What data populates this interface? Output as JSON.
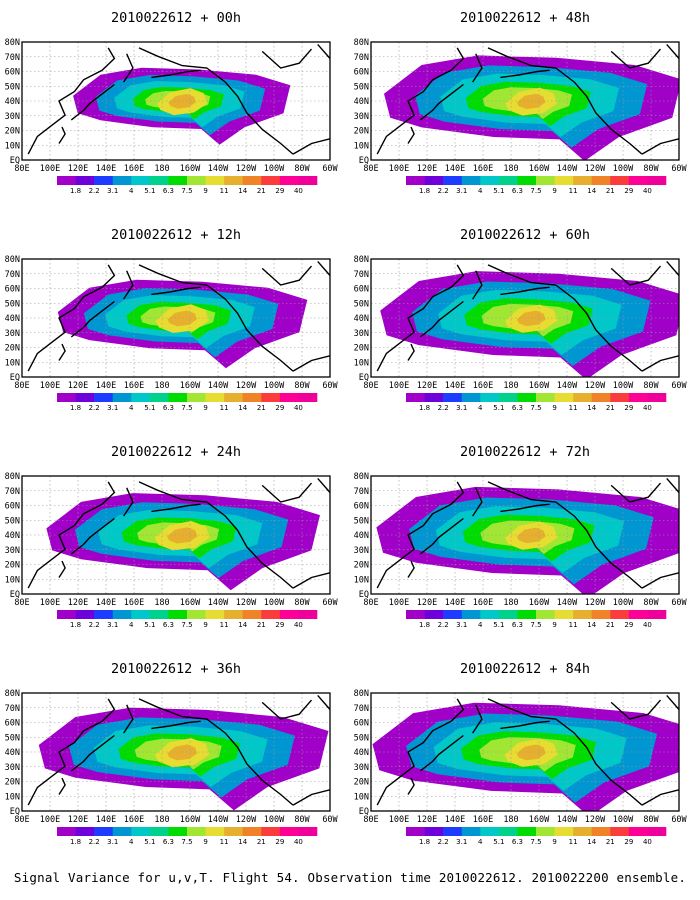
{
  "panels": [
    {
      "title": "2010022612 + 00h",
      "intensity": 0.55,
      "spread": 0.35
    },
    {
      "title": "2010022612 + 48h",
      "intensity": 0.6,
      "spread": 0.85
    },
    {
      "title": "2010022612 + 12h",
      "intensity": 0.65,
      "spread": 0.55
    },
    {
      "title": "2010022612 + 60h",
      "intensity": 0.62,
      "spread": 0.9
    },
    {
      "title": "2010022612 + 24h",
      "intensity": 0.7,
      "spread": 0.7
    },
    {
      "title": "2010022612 + 72h",
      "intensity": 0.62,
      "spread": 0.95
    },
    {
      "title": "2010022612 + 36h",
      "intensity": 0.68,
      "spread": 0.8
    },
    {
      "title": "2010022612 + 84h",
      "intensity": 0.64,
      "spread": 1.0
    }
  ],
  "lat_labels": [
    "EQ",
    "10N",
    "20N",
    "30N",
    "40N",
    "50N",
    "60N",
    "70N",
    "80N"
  ],
  "lon_labels": [
    "80E",
    "100E",
    "120E",
    "140E",
    "160E",
    "180",
    "160W",
    "140W",
    "120W",
    "100W",
    "80W",
    "60W"
  ],
  "colorbar": {
    "labels": [
      "1.8",
      "2.2",
      "3.1",
      "4",
      "5.1",
      "6.3",
      "7.5",
      "9",
      "11",
      "14",
      "21",
      "29",
      "40"
    ],
    "colors": [
      "#a000c8",
      "#6e00dc",
      "#1e3cff",
      "#0096d2",
      "#00c8c8",
      "#00d28c",
      "#00dc00",
      "#a0e632",
      "#e6dc32",
      "#e6af2d",
      "#f08228",
      "#fa3c3c",
      "#ff0096",
      "#f0009b"
    ]
  },
  "caption": "Signal Variance for u,v,T. Flight 54. Observation time 2010022612. 2010022200 ensemble."
}
